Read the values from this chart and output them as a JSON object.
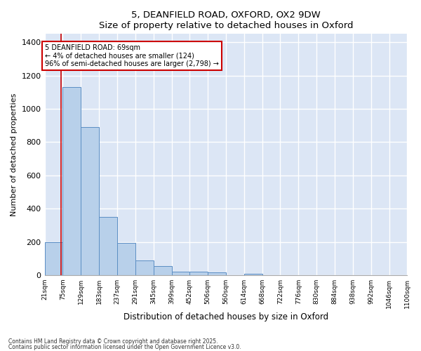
{
  "title": "5, DEANFIELD ROAD, OXFORD, OX2 9DW",
  "subtitle": "Size of property relative to detached houses in Oxford",
  "xlabel": "Distribution of detached houses by size in Oxford",
  "ylabel": "Number of detached properties",
  "bar_color": "#b8d0ea",
  "bar_edge_color": "#5b8ec4",
  "background_color": "#dce6f5",
  "grid_color": "#ffffff",
  "bin_edges": [
    21,
    75,
    129,
    183,
    237,
    291,
    345,
    399,
    452,
    506,
    560,
    614,
    668,
    722,
    776,
    830,
    884,
    938,
    992,
    1046,
    1100
  ],
  "bar_heights": [
    200,
    1130,
    890,
    350,
    195,
    90,
    55,
    20,
    20,
    15,
    0,
    10,
    0,
    0,
    0,
    0,
    0,
    0,
    0,
    0
  ],
  "tick_labels": [
    "21sqm",
    "75sqm",
    "129sqm",
    "183sqm",
    "237sqm",
    "291sqm",
    "345sqm",
    "399sqm",
    "452sqm",
    "506sqm",
    "560sqm",
    "614sqm",
    "668sqm",
    "722sqm",
    "776sqm",
    "830sqm",
    "884sqm",
    "938sqm",
    "992sqm",
    "1046sqm",
    "1100sqm"
  ],
  "red_line_x": 69,
  "annotation_line1": "5 DEANFIELD ROAD: 69sqm",
  "annotation_line2": "← 4% of detached houses are smaller (124)",
  "annotation_line3": "96% of semi-detached houses are larger (2,798) →",
  "annotation_box_color": "#ffffff",
  "annotation_border_color": "#cc0000",
  "ylim": [
    0,
    1450
  ],
  "yticks": [
    0,
    200,
    400,
    600,
    800,
    1000,
    1200,
    1400
  ],
  "fig_bg": "#ffffff",
  "footnote1": "Contains HM Land Registry data © Crown copyright and database right 2025.",
  "footnote2": "Contains public sector information licensed under the Open Government Licence v3.0."
}
